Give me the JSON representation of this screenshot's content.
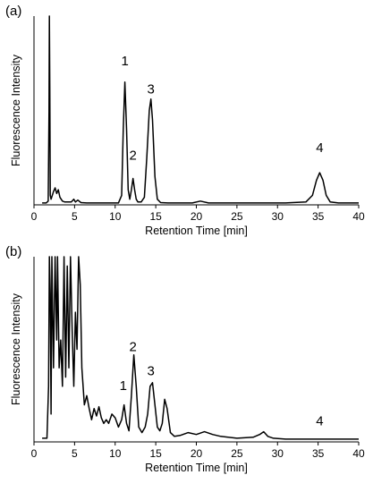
{
  "chart_data": [
    {
      "type": "line",
      "panel_label": "(a)",
      "xlabel": "Retention Time [min]",
      "ylabel": "Fluorescence Intensity",
      "xlim": [
        0,
        40
      ],
      "ylim": [
        0,
        1
      ],
      "grid": false,
      "x_ticks": [
        0,
        5,
        10,
        15,
        20,
        25,
        30,
        35,
        40
      ],
      "peak_labels": [
        {
          "text": "1",
          "x": 11.2,
          "y": 0.72
        },
        {
          "text": "2",
          "x": 12.2,
          "y": 0.22
        },
        {
          "text": "3",
          "x": 14.4,
          "y": 0.57
        },
        {
          "text": "4",
          "x": 35.2,
          "y": 0.26
        }
      ],
      "series": [
        {
          "x": [
            1.0,
            1.5,
            1.75,
            1.85,
            1.9,
            1.95,
            2.0,
            2.1,
            2.4,
            2.6,
            2.8,
            3.0,
            3.2,
            3.5,
            3.8,
            4.2,
            4.6,
            4.9,
            5.1,
            5.4,
            5.8,
            6.5,
            8.0,
            9.5,
            10.4,
            10.8,
            11.0,
            11.2,
            11.4,
            11.6,
            11.8,
            12.0,
            12.2,
            12.4,
            12.6,
            12.8,
            13.2,
            13.6,
            13.9,
            14.2,
            14.4,
            14.6,
            14.9,
            15.2,
            15.6,
            16.5,
            18.0,
            19.5,
            20.5,
            21.5,
            23.0,
            27.0,
            31.0,
            33.5,
            34.3,
            34.8,
            35.2,
            35.6,
            36.0,
            36.5,
            37.5,
            40.0
          ],
          "y": [
            0.01,
            0.01,
            0.02,
            0.5,
            1.0,
            0.6,
            0.05,
            0.03,
            0.07,
            0.09,
            0.06,
            0.08,
            0.04,
            0.02,
            0.015,
            0.015,
            0.015,
            0.03,
            0.015,
            0.025,
            0.012,
            0.01,
            0.01,
            0.01,
            0.01,
            0.05,
            0.4,
            0.65,
            0.4,
            0.08,
            0.03,
            0.08,
            0.14,
            0.08,
            0.03,
            0.015,
            0.015,
            0.04,
            0.25,
            0.5,
            0.56,
            0.45,
            0.15,
            0.03,
            0.012,
            0.01,
            0.01,
            0.01,
            0.02,
            0.01,
            0.01,
            0.01,
            0.01,
            0.015,
            0.05,
            0.13,
            0.17,
            0.13,
            0.05,
            0.015,
            0.01,
            0.01
          ]
        }
      ]
    },
    {
      "type": "line",
      "panel_label": "(b)",
      "xlabel": "Retention Time [min]",
      "ylabel": "Fluorescence Intensity",
      "xlim": [
        0,
        40
      ],
      "ylim": [
        0,
        1
      ],
      "grid": false,
      "x_ticks": [
        0,
        5,
        10,
        15,
        20,
        25,
        30,
        35,
        40
      ],
      "peak_labels": [
        {
          "text": "1",
          "x": 11.0,
          "y": 0.26
        },
        {
          "text": "2",
          "x": 12.2,
          "y": 0.47
        },
        {
          "text": "3",
          "x": 14.4,
          "y": 0.34
        },
        {
          "text": "4",
          "x": 35.2,
          "y": 0.07
        }
      ],
      "series": [
        {
          "x": [
            1.0,
            1.6,
            1.8,
            1.9,
            2.0,
            2.1,
            2.2,
            2.4,
            2.6,
            2.8,
            2.9,
            3.1,
            3.3,
            3.5,
            3.7,
            3.9,
            4.1,
            4.3,
            4.5,
            4.7,
            4.9,
            5.1,
            5.3,
            5.5,
            5.7,
            5.9,
            6.2,
            6.5,
            6.8,
            7.1,
            7.4,
            7.7,
            8.0,
            8.3,
            8.6,
            8.9,
            9.2,
            9.6,
            10.0,
            10.4,
            10.8,
            11.1,
            11.4,
            11.7,
            12.0,
            12.3,
            12.6,
            12.9,
            13.3,
            13.7,
            14.0,
            14.3,
            14.6,
            14.9,
            15.2,
            15.5,
            15.8,
            16.1,
            16.4,
            16.8,
            17.3,
            18.0,
            19.0,
            20.0,
            21.0,
            22.0,
            23.0,
            25.0,
            27.0,
            27.8,
            28.3,
            28.8,
            29.5,
            31.0,
            33.0,
            35.0,
            37.0,
            40.0
          ],
          "y": [
            0.02,
            0.02,
            0.3,
            1.0,
            0.8,
            0.15,
            1.0,
            0.4,
            1.0,
            0.55,
            1.0,
            0.4,
            0.55,
            0.3,
            1.0,
            0.35,
            0.95,
            0.4,
            1.0,
            0.6,
            0.3,
            0.7,
            0.5,
            1.0,
            0.85,
            0.4,
            0.2,
            0.25,
            0.18,
            0.12,
            0.18,
            0.14,
            0.19,
            0.13,
            0.1,
            0.12,
            0.1,
            0.15,
            0.13,
            0.08,
            0.12,
            0.2,
            0.1,
            0.06,
            0.25,
            0.47,
            0.3,
            0.08,
            0.05,
            0.08,
            0.15,
            0.3,
            0.32,
            0.2,
            0.08,
            0.06,
            0.1,
            0.23,
            0.18,
            0.05,
            0.03,
            0.035,
            0.05,
            0.04,
            0.055,
            0.04,
            0.03,
            0.02,
            0.025,
            0.04,
            0.055,
            0.03,
            0.02,
            0.015,
            0.015,
            0.015,
            0.015,
            0.015
          ]
        }
      ]
    }
  ]
}
